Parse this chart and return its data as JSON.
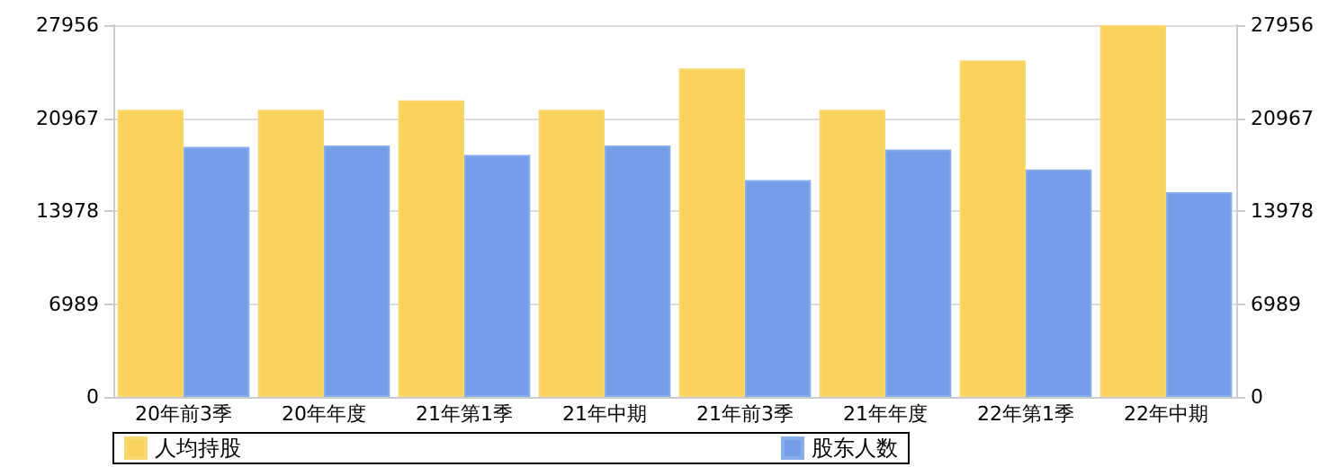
{
  "chart_data": {
    "type": "bar",
    "categories": [
      "20年前3季",
      "20年年度",
      "21年第1季",
      "21年中期",
      "21年前3季",
      "21年年度",
      "22年第1季",
      "22年中期"
    ],
    "series": [
      {
        "name": "人均持股",
        "color": "#f8d25a",
        "values": [
          21600,
          21600,
          22300,
          21600,
          24700,
          21600,
          25300,
          27956
        ]
      },
      {
        "name": "股东人数",
        "color": "#749fe8",
        "values": [
          18800,
          18900,
          18200,
          18900,
          16300,
          18600,
          17100,
          15400
        ]
      }
    ],
    "ylim": [
      0,
      27956
    ],
    "yticks": [
      0,
      6989,
      13978,
      20967,
      27956
    ],
    "y2lim": [
      0,
      27956
    ],
    "y2ticks": [
      0,
      6989,
      13978,
      20967,
      27956
    ],
    "grid": "y",
    "legend": "bottom left"
  }
}
